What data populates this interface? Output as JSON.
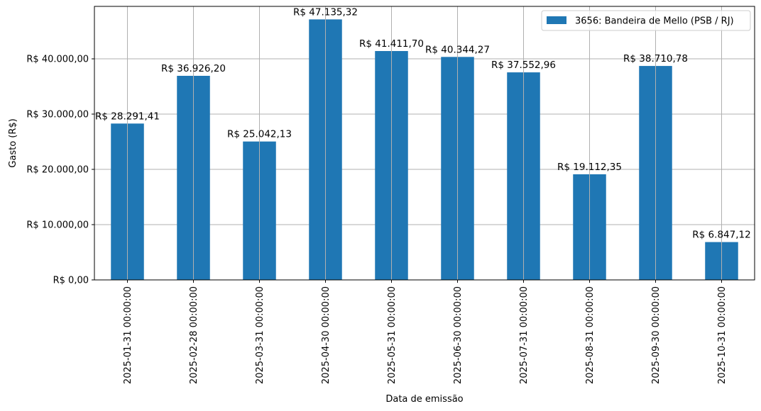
{
  "chart_data": {
    "type": "bar",
    "categories": [
      "2025-01-31 00:00:00",
      "2025-02-28 00:00:00",
      "2025-03-31 00:00:00",
      "2025-04-30 00:00:00",
      "2025-05-31 00:00:00",
      "2025-06-30 00:00:00",
      "2025-07-31 00:00:00",
      "2025-08-31 00:00:00",
      "2025-09-30 00:00:00",
      "2025-10-31 00:00:00"
    ],
    "series": [
      {
        "name": "3656: Bandeira de Mello (PSB / RJ)",
        "color": "#1f77b4",
        "values": [
          28291.41,
          36926.2,
          25042.13,
          47135.32,
          41411.7,
          40344.27,
          37552.96,
          19112.35,
          38710.78,
          6847.12
        ],
        "data_labels": [
          "R$ 28.291,41",
          "R$ 36.926,20",
          "R$ 25.042,13",
          "R$ 47.135,32",
          "R$ 41.411,70",
          "R$ 40.344,27",
          "R$ 37.552,96",
          "R$ 19.112,35",
          "R$ 38.710,78",
          "R$ 6.847,12"
        ]
      }
    ],
    "title": "",
    "xlabel": "Data de emissão",
    "ylabel": "Gasto (R$)",
    "ylim": [
      0,
      49491
    ],
    "yticks": [
      0,
      10000,
      20000,
      30000,
      40000
    ],
    "ytick_labels": [
      "R$ 0,00",
      "R$ 10.000,00",
      "R$ 20.000,00",
      "R$ 30.000,00",
      "R$ 40.000,00"
    ],
    "grid": true,
    "legend_position": "top-right"
  }
}
